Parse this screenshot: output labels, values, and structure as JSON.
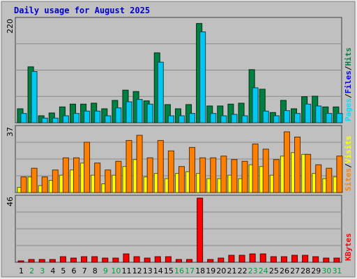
{
  "chart_data": {
    "type": "bar",
    "title": "Daily usage for August 2025",
    "colors": {
      "background": "#ececec",
      "frame": "#c0c0c0",
      "plot": "#c0c0c0",
      "grid": "#8a8a8a",
      "title": "#0000cc",
      "hits": "#008040",
      "files": "#00c0ff",
      "pages": "#00e0ff",
      "sites": "#ff8000",
      "visits": "#ffff00",
      "kbytes": "#ff0000",
      "weekend": "#00a040",
      "weekday": "#000000"
    },
    "day_labels": [
      "1",
      "2",
      "3",
      "4",
      "5",
      "6",
      "7",
      "8",
      "9",
      "10",
      "11",
      "12",
      "13",
      "14",
      "15",
      "16",
      "17",
      "18",
      "19",
      "20",
      "21",
      "22",
      "23",
      "24",
      "25",
      "26",
      "27",
      "28",
      "29",
      "30",
      "31"
    ],
    "weekend_days": [
      2,
      3,
      9,
      10,
      16,
      17,
      23,
      24,
      30,
      31
    ],
    "panels": [
      {
        "id": "hits-files",
        "ymax_label": "220",
        "ymax": 220,
        "right_labels": [
          {
            "text": "Pages",
            "color": "#00e0ff"
          },
          {
            "text": "/",
            "color": "#000000"
          },
          {
            "text": "Files",
            "color": "#0000ff"
          },
          {
            "text": "/",
            "color": "#000000"
          },
          {
            "text": "Hits",
            "color": "#008040"
          }
        ],
        "series": [
          {
            "name": "Hits",
            "color": "#008040",
            "values": [
              30,
              120,
              15,
              21,
              34,
              40,
              40,
              42,
              30,
              48,
              70,
              67,
              47,
              150,
              39,
              30,
              39,
              213,
              36,
              36,
              40,
              42,
              114,
              72,
              22,
              48,
              30,
              56,
              57,
              34,
              34
            ]
          },
          {
            "name": "Files",
            "color": "#00c8f0",
            "values": [
              20,
              110,
              10,
              10,
              15,
              20,
              25,
              25,
              15,
              32,
              45,
              50,
              40,
              130,
              15,
              15,
              20,
              195,
              20,
              15,
              18,
              15,
              75,
              25,
              15,
              26,
              20,
              40,
              36,
              20,
              20
            ]
          }
        ]
      },
      {
        "id": "sites-visits",
        "ymax_label": "37",
        "ymax": 37,
        "right_labels": [
          {
            "text": "Sites",
            "color": "#ff8000"
          },
          {
            "text": "/",
            "color": "#000000"
          },
          {
            "text": "Visits",
            "color": "#ffff00"
          }
        ],
        "series": [
          {
            "name": "Visits",
            "color": "#ffff00",
            "values": [
              3,
              9,
              4,
              7,
              10,
              13,
              17,
              10,
              5,
              10,
              15,
              19,
              9,
              11,
              8,
              11,
              12,
              11,
              8,
              8,
              10,
              8,
              16,
              15,
              10,
              21,
              23,
              22,
              11,
              8,
              9
            ]
          },
          {
            "name": "Sites",
            "color": "#ff8000",
            "values": [
              9,
              14,
              9,
              13,
              20,
              20,
              29,
              17,
              13,
              18,
              30,
              33,
              20,
              30,
              24,
              15,
              26,
              20,
              20,
              21,
              19,
              18,
              28,
              25,
              19,
              35,
              32,
              22,
              16,
              14,
              21
            ]
          }
        ]
      },
      {
        "id": "kbytes",
        "ymax_label": "46",
        "ymax": 46,
        "right_labels": [
          {
            "text": "KBytes",
            "color": "#ff0000"
          }
        ],
        "series": [
          {
            "name": "KBytes",
            "color": "#ff0000",
            "values": [
              1,
              2,
              2,
              2,
              4,
              3,
              4,
              4,
              3,
              3,
              6,
              4,
              3,
              4,
              4,
              2,
              2,
              46,
              2,
              3,
              5,
              5,
              6,
              6,
              4,
              4,
              5,
              5,
              4,
              3,
              3
            ]
          }
        ]
      }
    ]
  }
}
